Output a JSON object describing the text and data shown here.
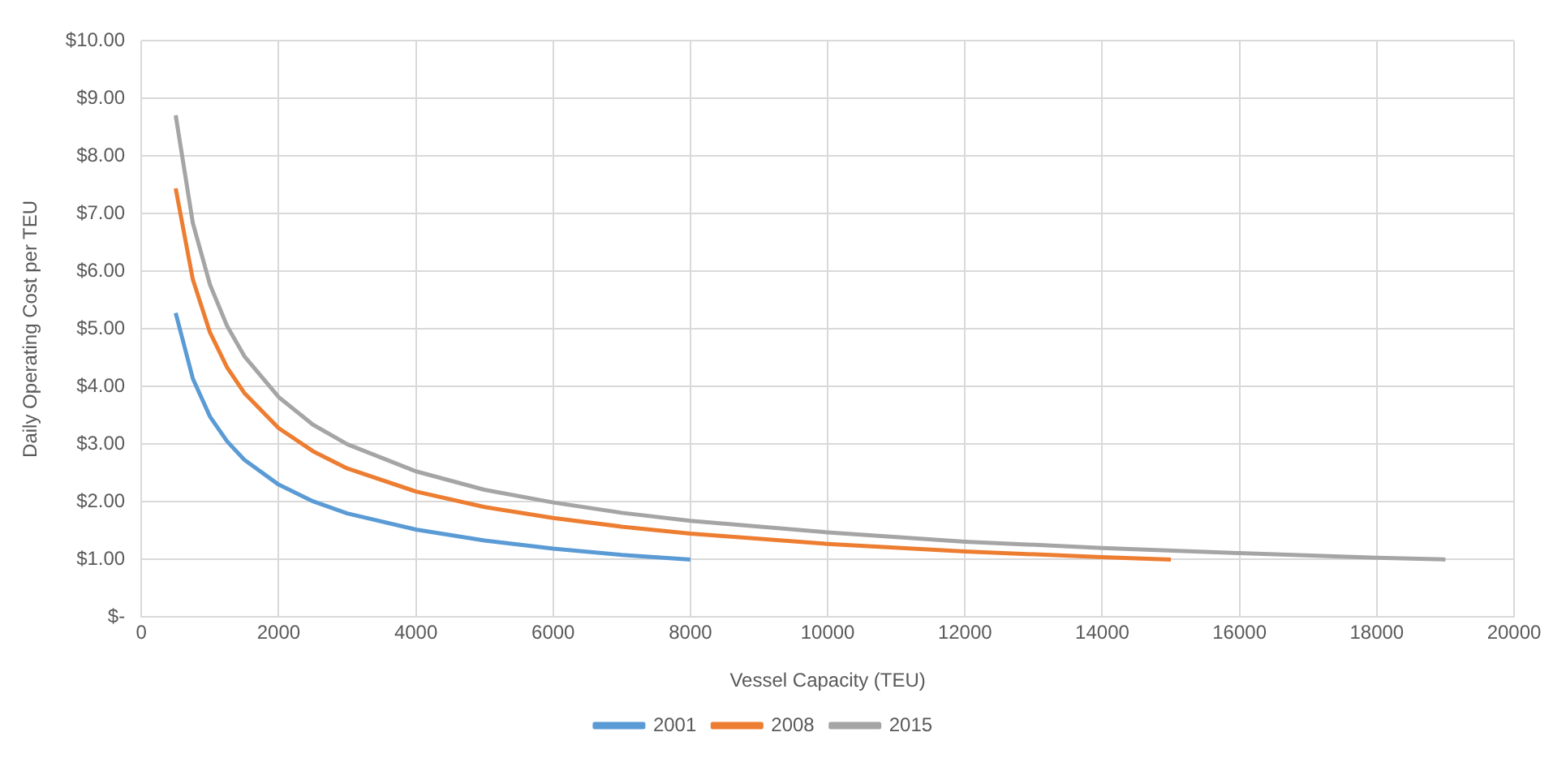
{
  "chart_data": {
    "type": "line",
    "xlabel": "Vessel Capacity (TEU)",
    "ylabel": "Daily Operating Cost per TEU",
    "xlim": [
      0,
      20000
    ],
    "xticks": [
      0,
      2000,
      4000,
      6000,
      8000,
      10000,
      12000,
      14000,
      16000,
      18000,
      20000
    ],
    "ylim": [
      0,
      10
    ],
    "yticks": [
      {
        "value": 0,
        "label": "$-"
      },
      {
        "value": 1,
        "label": "$1.00"
      },
      {
        "value": 2,
        "label": "$2.00"
      },
      {
        "value": 3,
        "label": "$3.00"
      },
      {
        "value": 4,
        "label": "$4.00"
      },
      {
        "value": 5,
        "label": "$5.00"
      },
      {
        "value": 6,
        "label": "$6.00"
      },
      {
        "value": 7,
        "label": "$7.00"
      },
      {
        "value": 8,
        "label": "$8.00"
      },
      {
        "value": 9,
        "label": "$9.00"
      },
      {
        "value": 10,
        "label": "$10.00"
      }
    ],
    "grid": true,
    "legend": "bottom",
    "marker": "none",
    "line_style": "solid",
    "series": [
      {
        "name": "2001",
        "color": "#5b9bd5",
        "x": [
          500,
          750,
          1000,
          1250,
          1500,
          2000,
          2500,
          3000,
          4000,
          5000,
          6000,
          7000,
          8000
        ],
        "values": [
          5.28,
          4.14,
          3.48,
          3.05,
          2.73,
          2.3,
          2.01,
          1.8,
          1.52,
          1.33,
          1.19,
          1.08,
          1.0
        ]
      },
      {
        "name": "2008",
        "color": "#ed7d31",
        "x": [
          500,
          750,
          1000,
          1250,
          1500,
          2000,
          2500,
          3000,
          4000,
          5000,
          6000,
          7000,
          8000,
          10000,
          12000,
          14000,
          15000
        ],
        "values": [
          7.44,
          5.86,
          4.94,
          4.33,
          3.89,
          3.28,
          2.88,
          2.58,
          2.18,
          1.91,
          1.72,
          1.57,
          1.45,
          1.27,
          1.14,
          1.04,
          1.0
        ]
      },
      {
        "name": "2015",
        "color": "#a5a5a5",
        "x": [
          500,
          750,
          1000,
          1250,
          1500,
          2000,
          2500,
          3000,
          4000,
          5000,
          6000,
          7000,
          8000,
          10000,
          12000,
          14000,
          16000,
          18000,
          19000
        ],
        "values": [
          8.71,
          6.84,
          5.77,
          5.05,
          4.53,
          3.82,
          3.34,
          3.0,
          2.53,
          2.21,
          1.99,
          1.81,
          1.67,
          1.47,
          1.31,
          1.2,
          1.11,
          1.03,
          1.0
        ]
      }
    ]
  }
}
